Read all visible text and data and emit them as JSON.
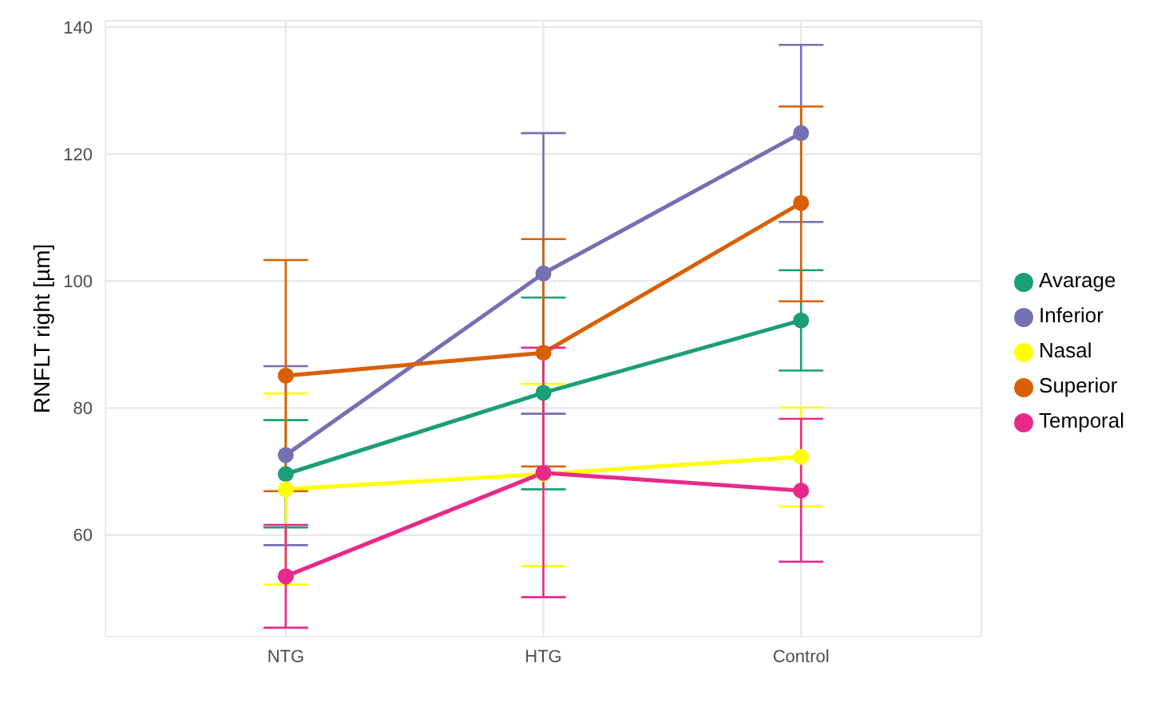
{
  "chart_data": {
    "type": "line",
    "ylabel": "RNFLT right [µm]",
    "categories": [
      "NTG",
      "HTG",
      "Control"
    ],
    "series": [
      {
        "name": "Avarage",
        "color": "#1b9e77",
        "values": [
          69.6,
          82.4,
          93.8
        ],
        "errors": [
          [
            61.2,
            78.1
          ],
          [
            67.2,
            97.4
          ],
          [
            85.9,
            101.7
          ]
        ]
      },
      {
        "name": "Inferior",
        "color": "#7570b3",
        "values": [
          72.6,
          101.2,
          123.3
        ],
        "errors": [
          [
            58.4,
            86.6
          ],
          [
            79.1,
            123.3
          ],
          [
            109.3,
            137.2
          ]
        ]
      },
      {
        "name": "Nasal",
        "color": "#ffff00",
        "values": [
          67.2,
          69.6,
          72.3
        ],
        "errors": [
          [
            52.2,
            82.3
          ],
          [
            55.1,
            83.8
          ],
          [
            64.5,
            80.1
          ]
        ]
      },
      {
        "name": "Superior",
        "color": "#d95f02",
        "values": [
          85.1,
          88.7,
          112.3
        ],
        "errors": [
          [
            66.9,
            103.3
          ],
          [
            70.8,
            106.6
          ],
          [
            96.8,
            127.5
          ]
        ]
      },
      {
        "name": "Temporal",
        "color": "#e7298a",
        "values": [
          53.5,
          69.8,
          67.0
        ],
        "errors": [
          [
            45.4,
            61.6
          ],
          [
            50.2,
            89.5
          ],
          [
            55.8,
            78.3
          ]
        ]
      }
    ],
    "ylim": [
      44,
      141
    ],
    "yticks": [
      60,
      80,
      100,
      120,
      140
    ],
    "grid": true,
    "legend": "right",
    "marker": "circle",
    "line_style": "solid"
  }
}
